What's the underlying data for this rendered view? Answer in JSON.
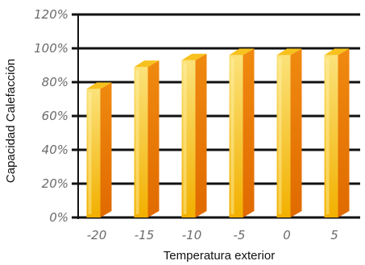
{
  "chart_data": {
    "type": "bar",
    "title": "",
    "xlabel": "Temperatura exterior",
    "ylabel": "Capacidad Calefacción",
    "categories": [
      "-20",
      "-15",
      "-10",
      "-5",
      "0",
      "5"
    ],
    "values": [
      76,
      89,
      93,
      96,
      96,
      96
    ],
    "ylim": [
      0,
      120
    ],
    "yticks": [
      0,
      20,
      40,
      60,
      80,
      100,
      120
    ],
    "ytick_labels": [
      "0%",
      "20%",
      "40%",
      "60%",
      "80%",
      "100%",
      "120%"
    ],
    "grid": true,
    "legend": "none",
    "colors": {
      "bar_front_top": "#fbe27a",
      "bar_front_bottom": "#f2b000",
      "bar_side_top": "#f08a10",
      "bar_side_bottom": "#e06a00",
      "bar_top": "#f7c21e",
      "gridline": "#111111"
    }
  }
}
